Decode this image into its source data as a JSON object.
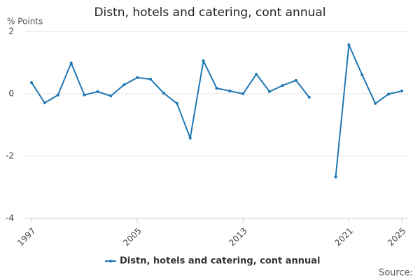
{
  "chart_data": {
    "type": "line",
    "title": "Distn, hotels and catering, cont annual",
    "y_label": "% Points",
    "x": [
      1997,
      1998,
      1999,
      2000,
      2001,
      2002,
      2003,
      2004,
      2005,
      2006,
      2007,
      2008,
      2009,
      2010,
      2011,
      2012,
      2013,
      2014,
      2015,
      2016,
      2017,
      2018,
      2019,
      2020,
      2021,
      2022,
      2023,
      2024,
      2025
    ],
    "series": [
      {
        "name": "Distn, hotels and catering, cont annual",
        "color": "#1f77b4",
        "values": [
          0.36,
          -0.29,
          -0.04,
          0.99,
          -0.04,
          0.07,
          -0.07,
          0.29,
          0.52,
          0.47,
          0.02,
          -0.31,
          -1.42,
          1.06,
          0.18,
          0.09,
          0.0,
          0.63,
          0.07,
          0.27,
          0.43,
          -0.11,
          null,
          -2.67,
          1.57,
          0.61,
          -0.31,
          -0.01,
          0.09
        ]
      }
    ],
    "xlim": [
      1997,
      2025
    ],
    "xticks": [
      1997,
      2005,
      2013,
      2021,
      2025
    ],
    "ylim": [
      -4,
      2
    ],
    "yticks": [
      -4,
      -2,
      0,
      2
    ],
    "grid": true,
    "legend": "bottom",
    "source": "Source:"
  }
}
